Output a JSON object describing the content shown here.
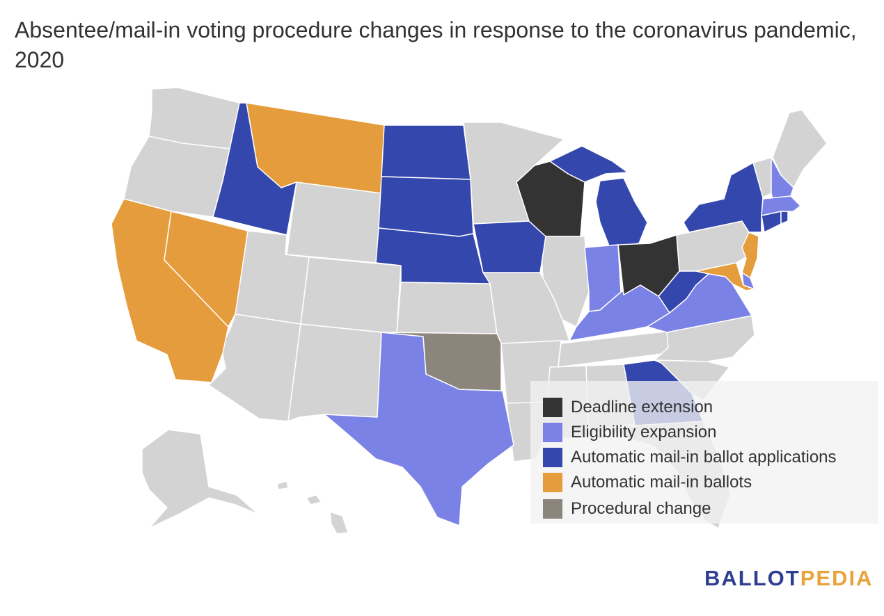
{
  "title": "Absentee/mail-in voting procedure changes in response to the coronavirus pandemic, 2020",
  "colors": {
    "deadline_extension": "#333333",
    "eligibility_expansion": "#7b82e6",
    "automatic_applications": "#3447ad",
    "automatic_ballots": "#e59c3c",
    "procedural_change": "#8b857b",
    "no_change": "#d3d3d3"
  },
  "legend": [
    {
      "label": "Deadline extension",
      "color": "#333333"
    },
    {
      "label": "Eligibility expansion",
      "color": "#7b82e6"
    },
    {
      "label": "Automatic mail-in ballot applications",
      "color": "#3447ad"
    },
    {
      "label": "Automatic mail-in ballots",
      "color": "#e59c3c"
    },
    {
      "label": "Procedural change",
      "color": "#8b857b"
    }
  ],
  "states": {
    "WI": "Deadline extension",
    "OH": "Deadline extension",
    "TX": "Eligibility expansion",
    "IN": "Eligibility expansion",
    "KY": "Eligibility expansion",
    "VA": "Eligibility expansion",
    "NH": "Eligibility expansion",
    "MA": "Eligibility expansion",
    "DE": "Eligibility expansion",
    "ID": "Automatic mail-in ballot applications",
    "ND": "Automatic mail-in ballot applications",
    "SD": "Automatic mail-in ballot applications",
    "NE": "Automatic mail-in ballot applications",
    "IA": "Automatic mail-in ballot applications",
    "MI": "Automatic mail-in ballot applications",
    "NY": "Automatic mail-in ballot applications",
    "WV": "Automatic mail-in ballot applications",
    "GA": "Automatic mail-in ballot applications",
    "CT": "Automatic mail-in ballot applications",
    "RI": "Automatic mail-in ballot applications",
    "CA": "Automatic mail-in ballots",
    "NV": "Automatic mail-in ballots",
    "MT": "Automatic mail-in ballots",
    "NJ": "Automatic mail-in ballots",
    "MD": "Automatic mail-in ballots",
    "OK": "Procedural change"
  },
  "logo": {
    "part1": "BALLOT",
    "part2": "PEDIA"
  }
}
